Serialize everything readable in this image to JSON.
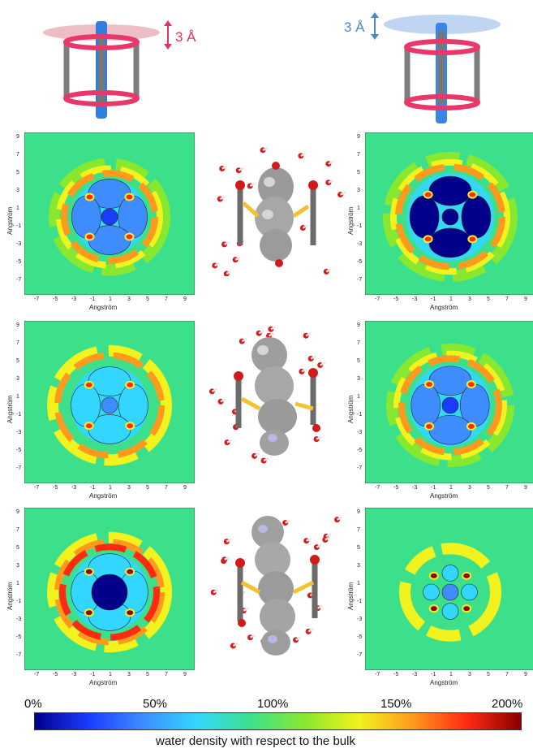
{
  "top_left": {
    "shift_label": "3 Å",
    "color": "#e0355f"
  },
  "top_right": {
    "shift_label": "3 Å",
    "color": "#4a86c8"
  },
  "maps": {
    "axis_title_x": "Angström",
    "axis_title_y": "Angström",
    "x_ticks": [
      "-7",
      "-5",
      "-3",
      "-1",
      "1",
      "3",
      "5",
      "7",
      "9"
    ],
    "y_ticks": [
      "9",
      "7",
      "5",
      "3",
      "1",
      "-1",
      "-3",
      "-5",
      "-7"
    ]
  },
  "colorbar": {
    "labels": [
      "0%",
      "50%",
      "100%",
      "150%",
      "200%"
    ],
    "caption": "water density with respect to the bulk",
    "colors": [
      "#00008b",
      "#1a3cff",
      "#3f8cff",
      "#33d6ff",
      "#3de08a",
      "#88e830",
      "#f2f21e",
      "#ff9a1e",
      "#ff2a12",
      "#8b0000"
    ]
  }
}
